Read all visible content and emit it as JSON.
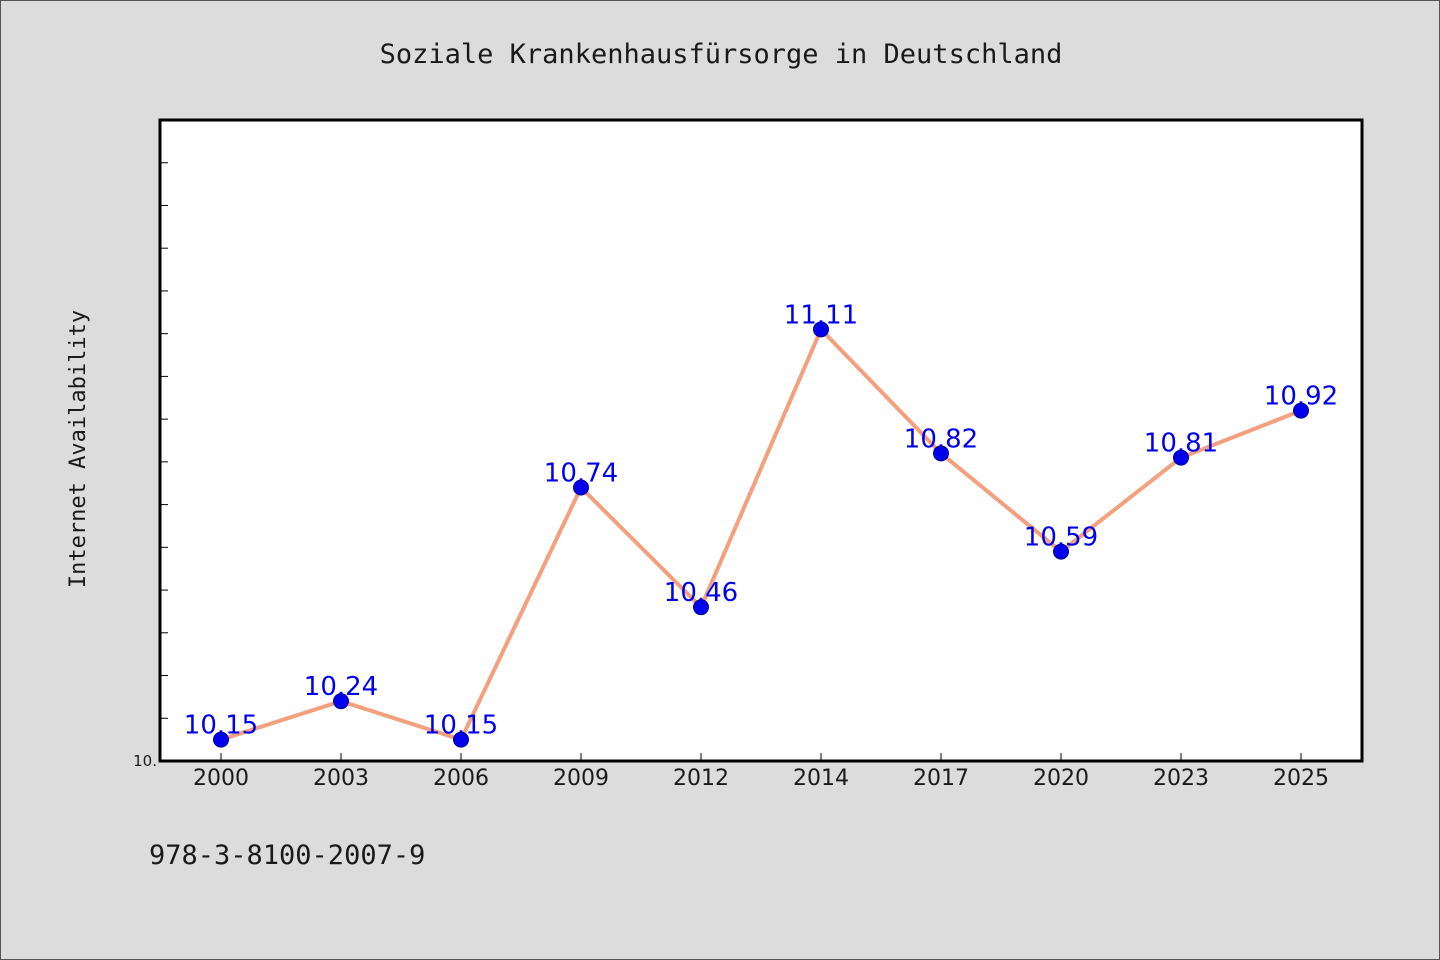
{
  "chart_data": {
    "type": "line",
    "title": "Soziale Krankenhausfürsorge in Deutschland",
    "xlabel": "",
    "ylabel": "Internet Availability",
    "categories": [
      "2000",
      "2003",
      "2006",
      "2009",
      "2012",
      "2014",
      "2017",
      "2020",
      "2023",
      "2025"
    ],
    "series": [
      {
        "values": [
          10.15,
          10.24,
          10.15,
          10.74,
          10.46,
          11.11,
          10.82,
          10.59,
          10.81,
          10.92
        ],
        "labels": [
          "10.15",
          "10.24",
          "10.15",
          "10.74",
          "10.46",
          "11.11",
          "10.82",
          "10.59",
          "10.81",
          "10.92"
        ]
      }
    ],
    "ylim": [
      10.1,
      11.6
    ],
    "yticks_labeled": [
      {
        "value": 10.1,
        "label": "10."
      }
    ],
    "ytick_step": 0.1,
    "grid": false,
    "line_color": "#f4a07e",
    "marker_color": "#0000ee",
    "label_color": "#0000ee"
  },
  "footer": {
    "isbn": "978-3-8100-2007-9"
  }
}
